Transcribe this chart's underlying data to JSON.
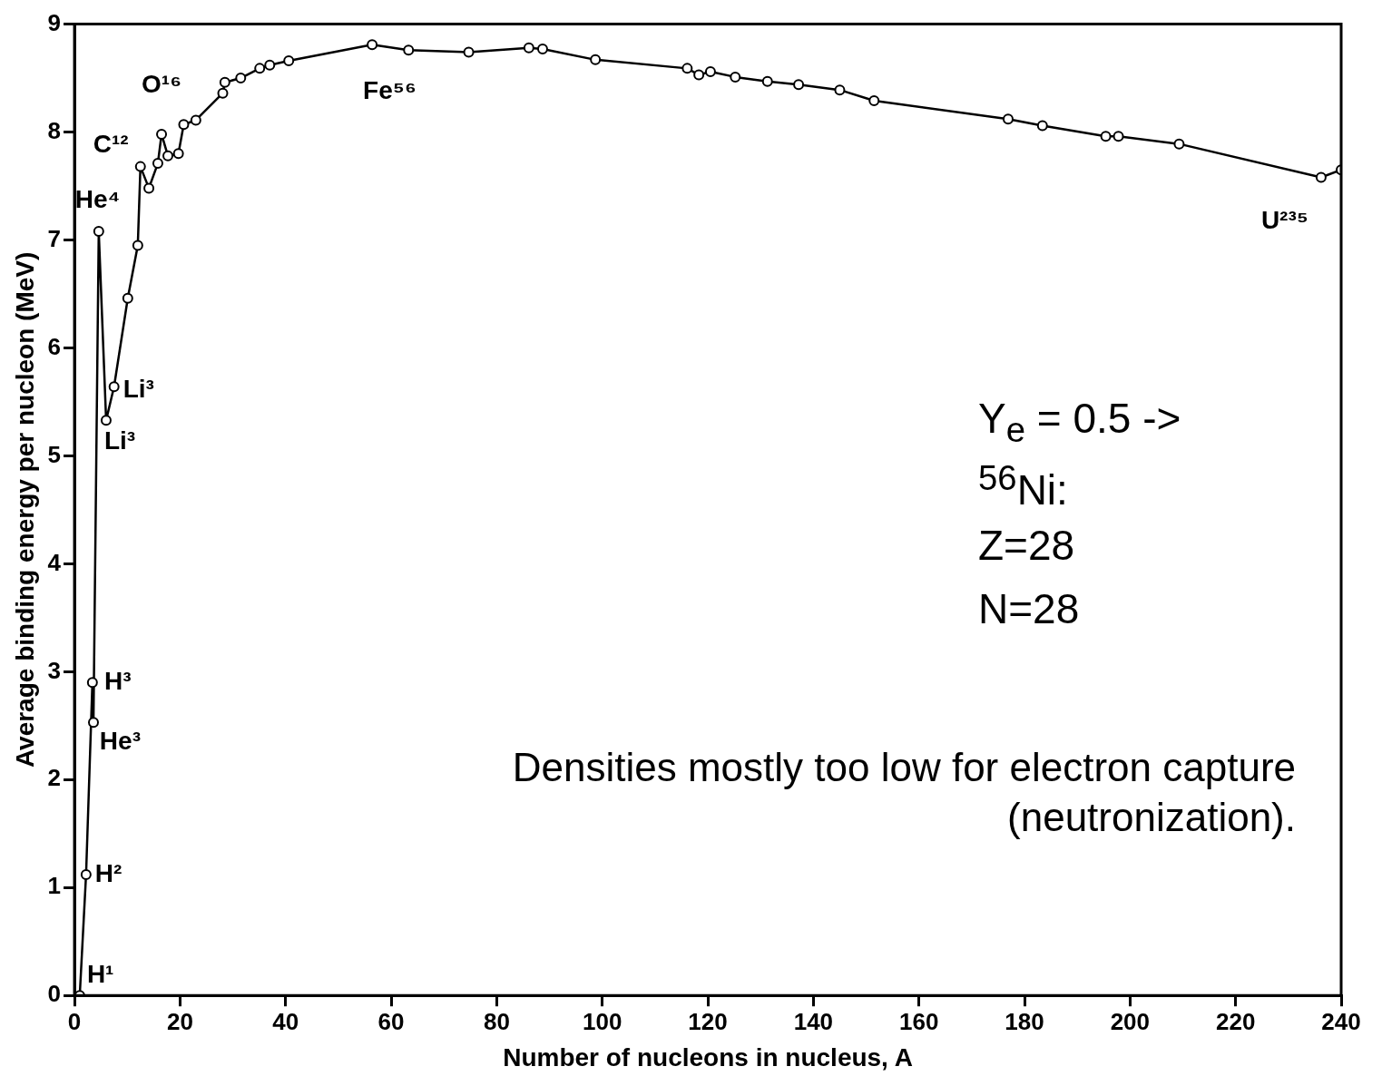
{
  "chart_data": {
    "type": "line",
    "xlabel": "Number of nucleons in nucleus, A",
    "ylabel": "Average binding energy per nucleon (MeV)",
    "x": [
      1,
      2.2,
      3.4,
      3.6,
      4.6,
      6.0,
      7.5,
      10.1,
      12.0,
      12.5,
      14.1,
      15.8,
      16.5,
      17.7,
      19.7,
      20.7,
      23.0,
      28.1,
      28.5,
      31.5,
      35.1,
      37.0,
      40.6,
      56.4,
      63.3,
      74.7,
      86.1,
      88.7,
      98.7,
      116.1,
      118.3,
      120.5,
      125.2,
      131.3,
      137.2,
      145.0,
      151.5,
      176.9,
      183.4,
      195.4,
      197.8,
      209.3,
      236.2,
      240
    ],
    "series": [
      {
        "color": "#000000",
        "values": [
          0,
          1.12,
          2.9,
          2.53,
          7.08,
          5.33,
          5.64,
          6.46,
          6.95,
          7.68,
          7.48,
          7.71,
          7.98,
          7.78,
          7.8,
          8.07,
          8.11,
          8.36,
          8.46,
          8.5,
          8.59,
          8.62,
          8.66,
          8.81,
          8.76,
          8.74,
          8.78,
          8.77,
          8.67,
          8.59,
          8.53,
          8.56,
          8.51,
          8.47,
          8.44,
          8.39,
          8.29,
          8.12,
          8.06,
          7.96,
          7.96,
          7.89,
          7.58,
          7.65
        ]
      }
    ],
    "xlim": [
      0,
      240
    ],
    "xticks": [
      0,
      20,
      40,
      60,
      80,
      100,
      120,
      140,
      160,
      180,
      200,
      220,
      240
    ],
    "ylim": [
      0,
      9
    ],
    "yticks": [
      0,
      1,
      2,
      3,
      4,
      5,
      6,
      7,
      8,
      9
    ],
    "marker": "circle",
    "legend": false,
    "annotations": [
      {
        "text": "H¹",
        "x": 1,
        "y": 0
      },
      {
        "text": "H²",
        "x": 2.2,
        "y": 1.12
      },
      {
        "text": "He³",
        "x": 3.4,
        "y": 2.53
      },
      {
        "text": "H³",
        "x": 3.6,
        "y": 2.9
      },
      {
        "text": "He⁴",
        "x": 4.6,
        "y": 7.08
      },
      {
        "text": "Li³",
        "x": 6.0,
        "y": 5.33
      },
      {
        "text": "Li³",
        "x": 7.5,
        "y": 5.64
      },
      {
        "text": "C¹²",
        "x": 12.5,
        "y": 7.68
      },
      {
        "text": "O¹⁶",
        "x": 16.5,
        "y": 7.98
      },
      {
        "text": "Fe⁵⁶",
        "x": 56.4,
        "y": 8.81
      },
      {
        "text": "U²³⁵",
        "x": 236.2,
        "y": 7.58
      },
      "Y$_{e}$ = 0.5 ->",
      "$^{56}$Ni:",
      "Z=28",
      "N=28",
      "Densities mostly too low for electron capture (neutronization)."
    ]
  }
}
